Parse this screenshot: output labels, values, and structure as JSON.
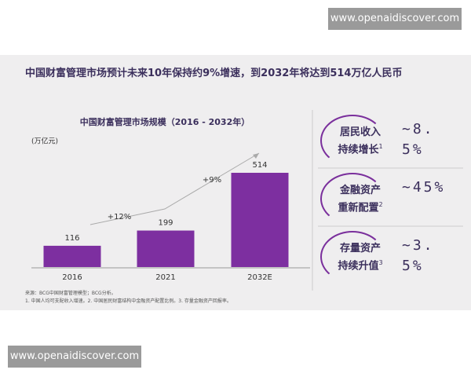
{
  "watermark_top": "www.openaidiscover.com",
  "watermark_bottom": "www.openaidiscover.com",
  "headline": "中国财富管理市场预计未来10年保持约9%增速，到2032年将达到514万亿人民币",
  "chart_data": {
    "type": "bar",
    "title": "中国财富管理市场规模（2016 - 2032年）",
    "unit": "(万亿元)",
    "categories": [
      "2016",
      "2021",
      "2032E"
    ],
    "values": [
      116,
      199,
      514
    ],
    "color": "#7d2fa0",
    "annotations": [
      "+12%",
      "+9%"
    ]
  },
  "drivers": [
    {
      "label": [
        "居民收入",
        "持续增长"
      ],
      "note": "1",
      "value": "~8.5%"
    },
    {
      "label": [
        "金融资产",
        "重新配置"
      ],
      "note": "2",
      "value": "~45%"
    },
    {
      "label": [
        "存量资产",
        "持续升值"
      ],
      "note": "3",
      "value": "~3.5%"
    }
  ],
  "footnotes": [
    "来源：BCG中国财富管理模型；BCG分析。",
    "1. 中国人均可支配收入增速。2. 中国居民财富结构中金融资产配置比例。3. 存量金融资产回报率。"
  ]
}
